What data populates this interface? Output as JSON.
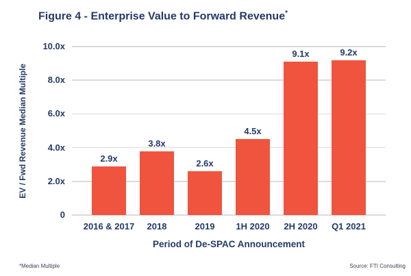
{
  "figure": {
    "title": "Figure 4 - Enterprise Value to Forward Revenue",
    "title_superscript": "*",
    "footnote": "*Median Multiple",
    "source": "Source: FTI Consulting"
  },
  "chart_data": {
    "type": "bar",
    "title": "Figure 4 - Enterprise Value to Forward Revenue*",
    "categories": [
      "2016 & 2017",
      "2018",
      "2019",
      "1H 2020",
      "2H 2020",
      "Q1 2021"
    ],
    "values": [
      2.9,
      3.8,
      2.6,
      4.5,
      9.1,
      9.2
    ],
    "value_labels": [
      "2.9x",
      "3.8x",
      "2.6x",
      "4.5x",
      "9.1x",
      "9.2x"
    ],
    "xlabel": "Period of De-SPAC Announcement",
    "ylabel": "EV / Fwd Revenue Median Multiple",
    "ylim": [
      0,
      10
    ],
    "yticks": [
      {
        "value": 10,
        "label": "10.0x"
      },
      {
        "value": 8,
        "label": "8.0x"
      },
      {
        "value": 6,
        "label": "6.0x"
      },
      {
        "value": 4,
        "label": "4.0x"
      },
      {
        "value": 2,
        "label": "2.0x"
      },
      {
        "value": 0,
        "label": "0"
      }
    ],
    "grid": "horizontal",
    "legend": "none",
    "colors": {
      "bar": "#F0543F",
      "text": "#233A66",
      "gridline": "#DADADA",
      "background": "#FFFFFF"
    }
  }
}
